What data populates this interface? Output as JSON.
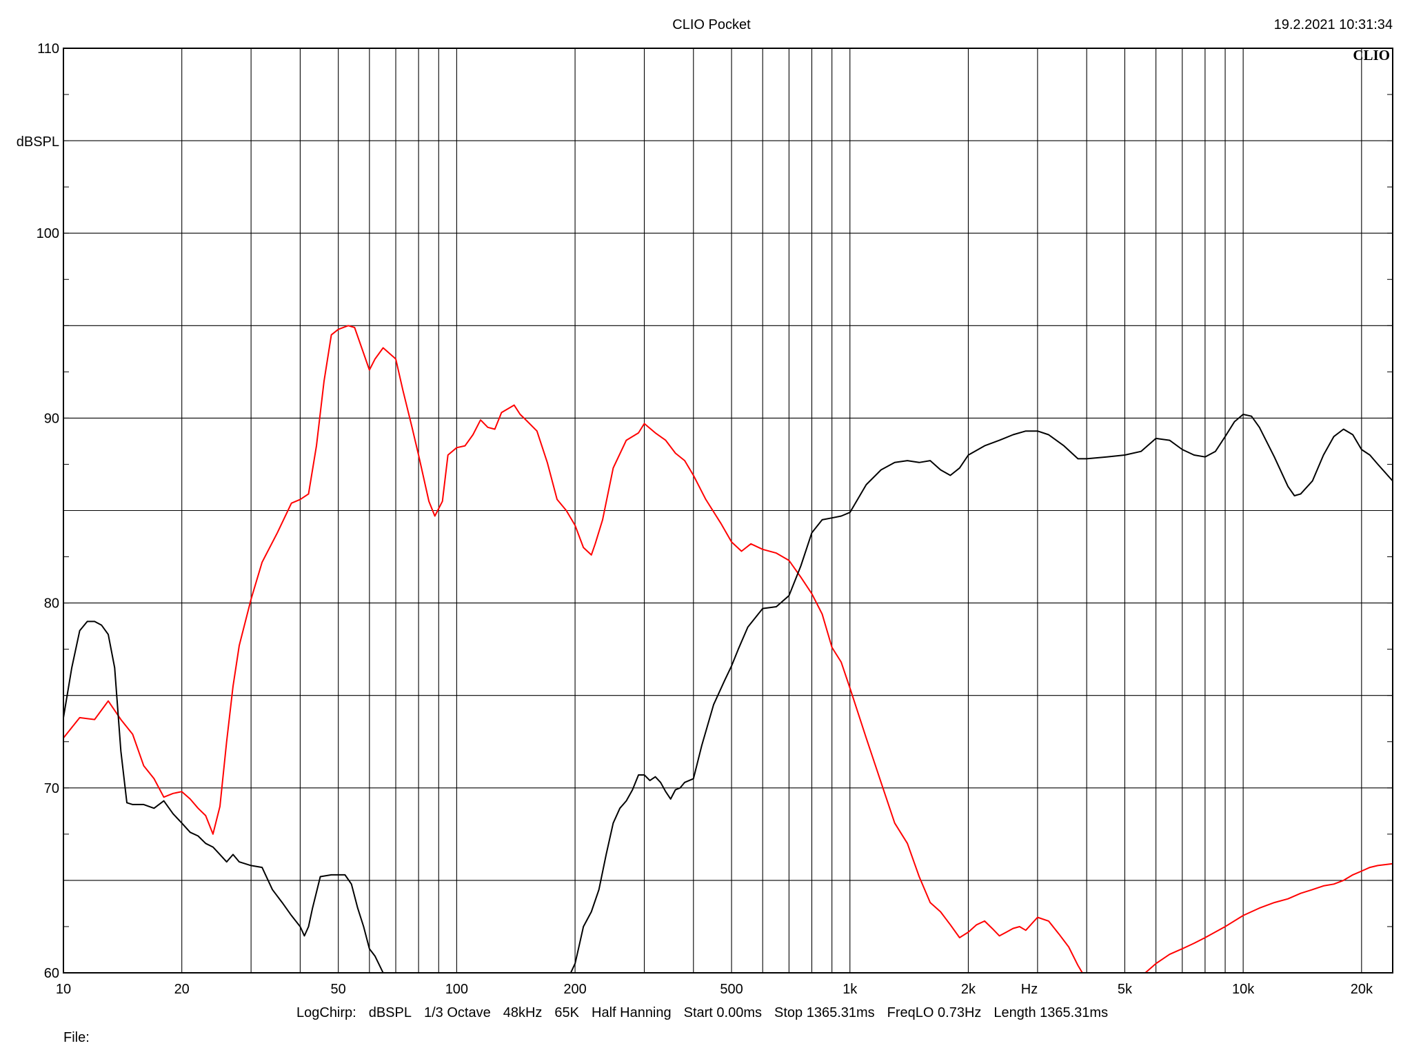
{
  "header": {
    "title": "CLIO Pocket",
    "timestamp": "19.2.2021 10:31:34",
    "brand": "CLIO"
  },
  "footer": {
    "items": [
      "LogChirp:",
      "dBSPL",
      "1/3 Octave",
      "48kHz",
      "65K",
      "Half Hanning",
      "Start 0.00ms",
      "Stop 1365.31ms",
      "FreqLO 0.73Hz",
      "Length 1365.31ms"
    ],
    "file_label": "File:"
  },
  "colors": {
    "grid": "#000000",
    "series_red": "#ff0000",
    "series_black": "#000000"
  },
  "chart_data": {
    "type": "line",
    "xscale": "log",
    "xlim": [
      10,
      24000
    ],
    "ylim": [
      60,
      110
    ],
    "xlabel": "Hz",
    "ylabel": "dBSPL",
    "grid": true,
    "x_ticks": [
      {
        "v": 10,
        "label": "10"
      },
      {
        "v": 20,
        "label": "20"
      },
      {
        "v": 50,
        "label": "50"
      },
      {
        "v": 100,
        "label": "100"
      },
      {
        "v": 200,
        "label": "200"
      },
      {
        "v": 500,
        "label": "500"
      },
      {
        "v": 1000,
        "label": "1k"
      },
      {
        "v": 2000,
        "label": "2k"
      },
      {
        "v": 5000,
        "label": "5k"
      },
      {
        "v": 10000,
        "label": "10k"
      },
      {
        "v": 20000,
        "label": "20k"
      }
    ],
    "y_ticks": [
      {
        "v": 60,
        "label": "60"
      },
      {
        "v": 70,
        "label": "70"
      },
      {
        "v": 80,
        "label": "80"
      },
      {
        "v": 90,
        "label": "90"
      },
      {
        "v": 100,
        "label": "100"
      },
      {
        "v": 110,
        "label": "110"
      }
    ],
    "series": [
      {
        "color": "#ff0000",
        "points": [
          [
            10,
            72.7
          ],
          [
            11,
            73.8
          ],
          [
            12,
            73.7
          ],
          [
            13,
            74.7
          ],
          [
            14,
            73.7
          ],
          [
            15,
            72.9
          ],
          [
            16,
            71.2
          ],
          [
            17,
            70.5
          ],
          [
            18,
            69.5
          ],
          [
            19,
            69.7
          ],
          [
            20,
            69.8
          ],
          [
            21,
            69.4
          ],
          [
            22,
            68.9
          ],
          [
            23,
            68.5
          ],
          [
            24,
            67.5
          ],
          [
            25,
            69
          ],
          [
            26,
            72.5
          ],
          [
            27,
            75.5
          ],
          [
            28,
            77.7
          ],
          [
            30,
            80.2
          ],
          [
            32,
            82.2
          ],
          [
            35,
            83.8
          ],
          [
            38,
            85.4
          ],
          [
            40,
            85.6
          ],
          [
            42,
            85.9
          ],
          [
            44,
            88.5
          ],
          [
            46,
            92
          ],
          [
            48,
            94.5
          ],
          [
            50,
            94.8
          ],
          [
            53,
            95
          ],
          [
            55,
            94.9
          ],
          [
            58,
            93.5
          ],
          [
            60,
            92.6
          ],
          [
            62,
            93.2
          ],
          [
            65,
            93.8
          ],
          [
            70,
            93.2
          ],
          [
            73,
            91.5
          ],
          [
            77,
            89.5
          ],
          [
            80,
            88
          ],
          [
            85,
            85.5
          ],
          [
            88,
            84.7
          ],
          [
            92,
            85.5
          ],
          [
            95,
            88
          ],
          [
            100,
            88.4
          ],
          [
            105,
            88.5
          ],
          [
            110,
            89.1
          ],
          [
            115,
            89.9
          ],
          [
            120,
            89.5
          ],
          [
            125,
            89.4
          ],
          [
            130,
            90.3
          ],
          [
            140,
            90.7
          ],
          [
            145,
            90.2
          ],
          [
            150,
            89.9
          ],
          [
            160,
            89.3
          ],
          [
            170,
            87.6
          ],
          [
            180,
            85.6
          ],
          [
            190,
            85
          ],
          [
            200,
            84.2
          ],
          [
            210,
            83
          ],
          [
            220,
            82.6
          ],
          [
            225,
            83.2
          ],
          [
            235,
            84.5
          ],
          [
            250,
            87.3
          ],
          [
            270,
            88.8
          ],
          [
            290,
            89.2
          ],
          [
            300,
            89.7
          ],
          [
            320,
            89.2
          ],
          [
            340,
            88.8
          ],
          [
            360,
            88.1
          ],
          [
            380,
            87.7
          ],
          [
            400,
            86.9
          ],
          [
            430,
            85.6
          ],
          [
            470,
            84.3
          ],
          [
            500,
            83.3
          ],
          [
            530,
            82.8
          ],
          [
            560,
            83.2
          ],
          [
            600,
            82.9
          ],
          [
            650,
            82.7
          ],
          [
            700,
            82.3
          ],
          [
            750,
            81.4
          ],
          [
            800,
            80.5
          ],
          [
            850,
            79.4
          ],
          [
            900,
            77.6
          ],
          [
            950,
            76.8
          ],
          [
            1000,
            75.4
          ],
          [
            1100,
            72.7
          ],
          [
            1200,
            70.3
          ],
          [
            1300,
            68.1
          ],
          [
            1400,
            67
          ],
          [
            1500,
            65.2
          ],
          [
            1600,
            63.8
          ],
          [
            1700,
            63.3
          ],
          [
            1800,
            62.6
          ],
          [
            1900,
            61.9
          ],
          [
            2000,
            62.2
          ],
          [
            2100,
            62.6
          ],
          [
            2200,
            62.8
          ],
          [
            2300,
            62.4
          ],
          [
            2400,
            62
          ],
          [
            2500,
            62.2
          ],
          [
            2600,
            62.4
          ],
          [
            2700,
            62.5
          ],
          [
            2800,
            62.3
          ],
          [
            3000,
            63
          ],
          [
            3200,
            62.8
          ],
          [
            3400,
            62.1
          ],
          [
            3600,
            61.4
          ],
          [
            3800,
            60.4
          ],
          [
            4000,
            59.6
          ]
        ]
      },
      {
        "color": "#ff0000",
        "points": [
          [
            5500,
            59.8
          ],
          [
            6000,
            60.5
          ],
          [
            6500,
            61
          ],
          [
            7000,
            61.3
          ],
          [
            7500,
            61.6
          ],
          [
            8000,
            61.9
          ],
          [
            9000,
            62.5
          ],
          [
            10000,
            63.1
          ],
          [
            11000,
            63.5
          ],
          [
            12000,
            63.8
          ],
          [
            13000,
            64
          ],
          [
            14000,
            64.3
          ],
          [
            15000,
            64.5
          ],
          [
            16000,
            64.7
          ],
          [
            17000,
            64.8
          ],
          [
            18000,
            65
          ],
          [
            19000,
            65.3
          ],
          [
            20000,
            65.5
          ],
          [
            21000,
            65.7
          ],
          [
            22000,
            65.8
          ],
          [
            24000,
            65.9
          ]
        ]
      },
      {
        "color": "#000000",
        "points": [
          [
            10,
            73.8
          ],
          [
            10.5,
            76.5
          ],
          [
            11,
            78.5
          ],
          [
            11.5,
            79
          ],
          [
            12,
            79
          ],
          [
            12.5,
            78.8
          ],
          [
            13,
            78.3
          ],
          [
            13.5,
            76.5
          ],
          [
            14,
            72
          ],
          [
            14.5,
            69.2
          ],
          [
            15,
            69.1
          ],
          [
            16,
            69.1
          ],
          [
            17,
            68.9
          ],
          [
            18,
            69.3
          ],
          [
            19,
            68.6
          ],
          [
            20,
            68.1
          ],
          [
            21,
            67.6
          ],
          [
            22,
            67.4
          ],
          [
            23,
            67
          ],
          [
            24,
            66.8
          ],
          [
            25,
            66.4
          ],
          [
            26,
            66
          ],
          [
            27,
            66.4
          ],
          [
            28,
            66
          ],
          [
            30,
            65.8
          ],
          [
            32,
            65.7
          ],
          [
            34,
            64.5
          ],
          [
            36,
            63.8
          ],
          [
            38,
            63.1
          ],
          [
            40,
            62.5
          ],
          [
            41,
            62
          ],
          [
            42,
            62.5
          ],
          [
            43,
            63.5
          ],
          [
            45,
            65.2
          ],
          [
            48,
            65.3
          ],
          [
            50,
            65.3
          ],
          [
            52,
            65.3
          ],
          [
            54,
            64.8
          ],
          [
            56,
            63.5
          ],
          [
            58,
            62.5
          ],
          [
            60,
            61.3
          ],
          [
            62,
            60.9
          ],
          [
            65,
            60
          ]
        ]
      },
      {
        "color": "#000000",
        "points": [
          [
            195,
            60
          ],
          [
            200,
            60.5
          ],
          [
            205,
            61.5
          ],
          [
            210,
            62.5
          ],
          [
            220,
            63.3
          ],
          [
            230,
            64.5
          ],
          [
            240,
            66.4
          ],
          [
            250,
            68.1
          ],
          [
            260,
            68.9
          ],
          [
            270,
            69.3
          ],
          [
            280,
            69.9
          ],
          [
            290,
            70.7
          ],
          [
            300,
            70.7
          ],
          [
            310,
            70.4
          ],
          [
            320,
            70.6
          ],
          [
            330,
            70.3
          ],
          [
            340,
            69.8
          ],
          [
            350,
            69.4
          ],
          [
            360,
            69.9
          ],
          [
            370,
            70
          ],
          [
            380,
            70.3
          ],
          [
            400,
            70.5
          ],
          [
            420,
            72.3
          ],
          [
            450,
            74.5
          ],
          [
            480,
            75.8
          ],
          [
            500,
            76.6
          ],
          [
            520,
            77.5
          ],
          [
            550,
            78.7
          ],
          [
            600,
            79.7
          ],
          [
            650,
            79.8
          ],
          [
            700,
            80.4
          ],
          [
            750,
            82
          ],
          [
            800,
            83.8
          ],
          [
            850,
            84.5
          ],
          [
            900,
            84.6
          ],
          [
            950,
            84.7
          ],
          [
            1000,
            84.9
          ],
          [
            1100,
            86.4
          ],
          [
            1200,
            87.2
          ],
          [
            1300,
            87.6
          ],
          [
            1400,
            87.7
          ],
          [
            1500,
            87.6
          ],
          [
            1600,
            87.7
          ],
          [
            1700,
            87.2
          ],
          [
            1800,
            86.9
          ],
          [
            1900,
            87.3
          ],
          [
            2000,
            88
          ],
          [
            2200,
            88.5
          ],
          [
            2400,
            88.8
          ],
          [
            2600,
            89.1
          ],
          [
            2800,
            89.3
          ],
          [
            3000,
            89.3
          ],
          [
            3200,
            89.1
          ],
          [
            3500,
            88.5
          ],
          [
            3800,
            87.8
          ],
          [
            4000,
            87.8
          ],
          [
            4500,
            87.9
          ],
          [
            5000,
            88
          ],
          [
            5500,
            88.2
          ],
          [
            6000,
            88.9
          ],
          [
            6500,
            88.8
          ],
          [
            7000,
            88.3
          ],
          [
            7500,
            88
          ],
          [
            8000,
            87.9
          ],
          [
            8500,
            88.2
          ],
          [
            9000,
            89
          ],
          [
            9500,
            89.8
          ],
          [
            10000,
            90.2
          ],
          [
            10500,
            90.1
          ],
          [
            11000,
            89.5
          ],
          [
            12000,
            87.9
          ],
          [
            13000,
            86.3
          ],
          [
            13500,
            85.8
          ],
          [
            14000,
            85.9
          ],
          [
            15000,
            86.6
          ],
          [
            16000,
            88
          ],
          [
            17000,
            89
          ],
          [
            18000,
            89.4
          ],
          [
            19000,
            89.1
          ],
          [
            20000,
            88.3
          ],
          [
            21000,
            88
          ],
          [
            22000,
            87.5
          ],
          [
            24000,
            86.6
          ]
        ]
      }
    ]
  }
}
